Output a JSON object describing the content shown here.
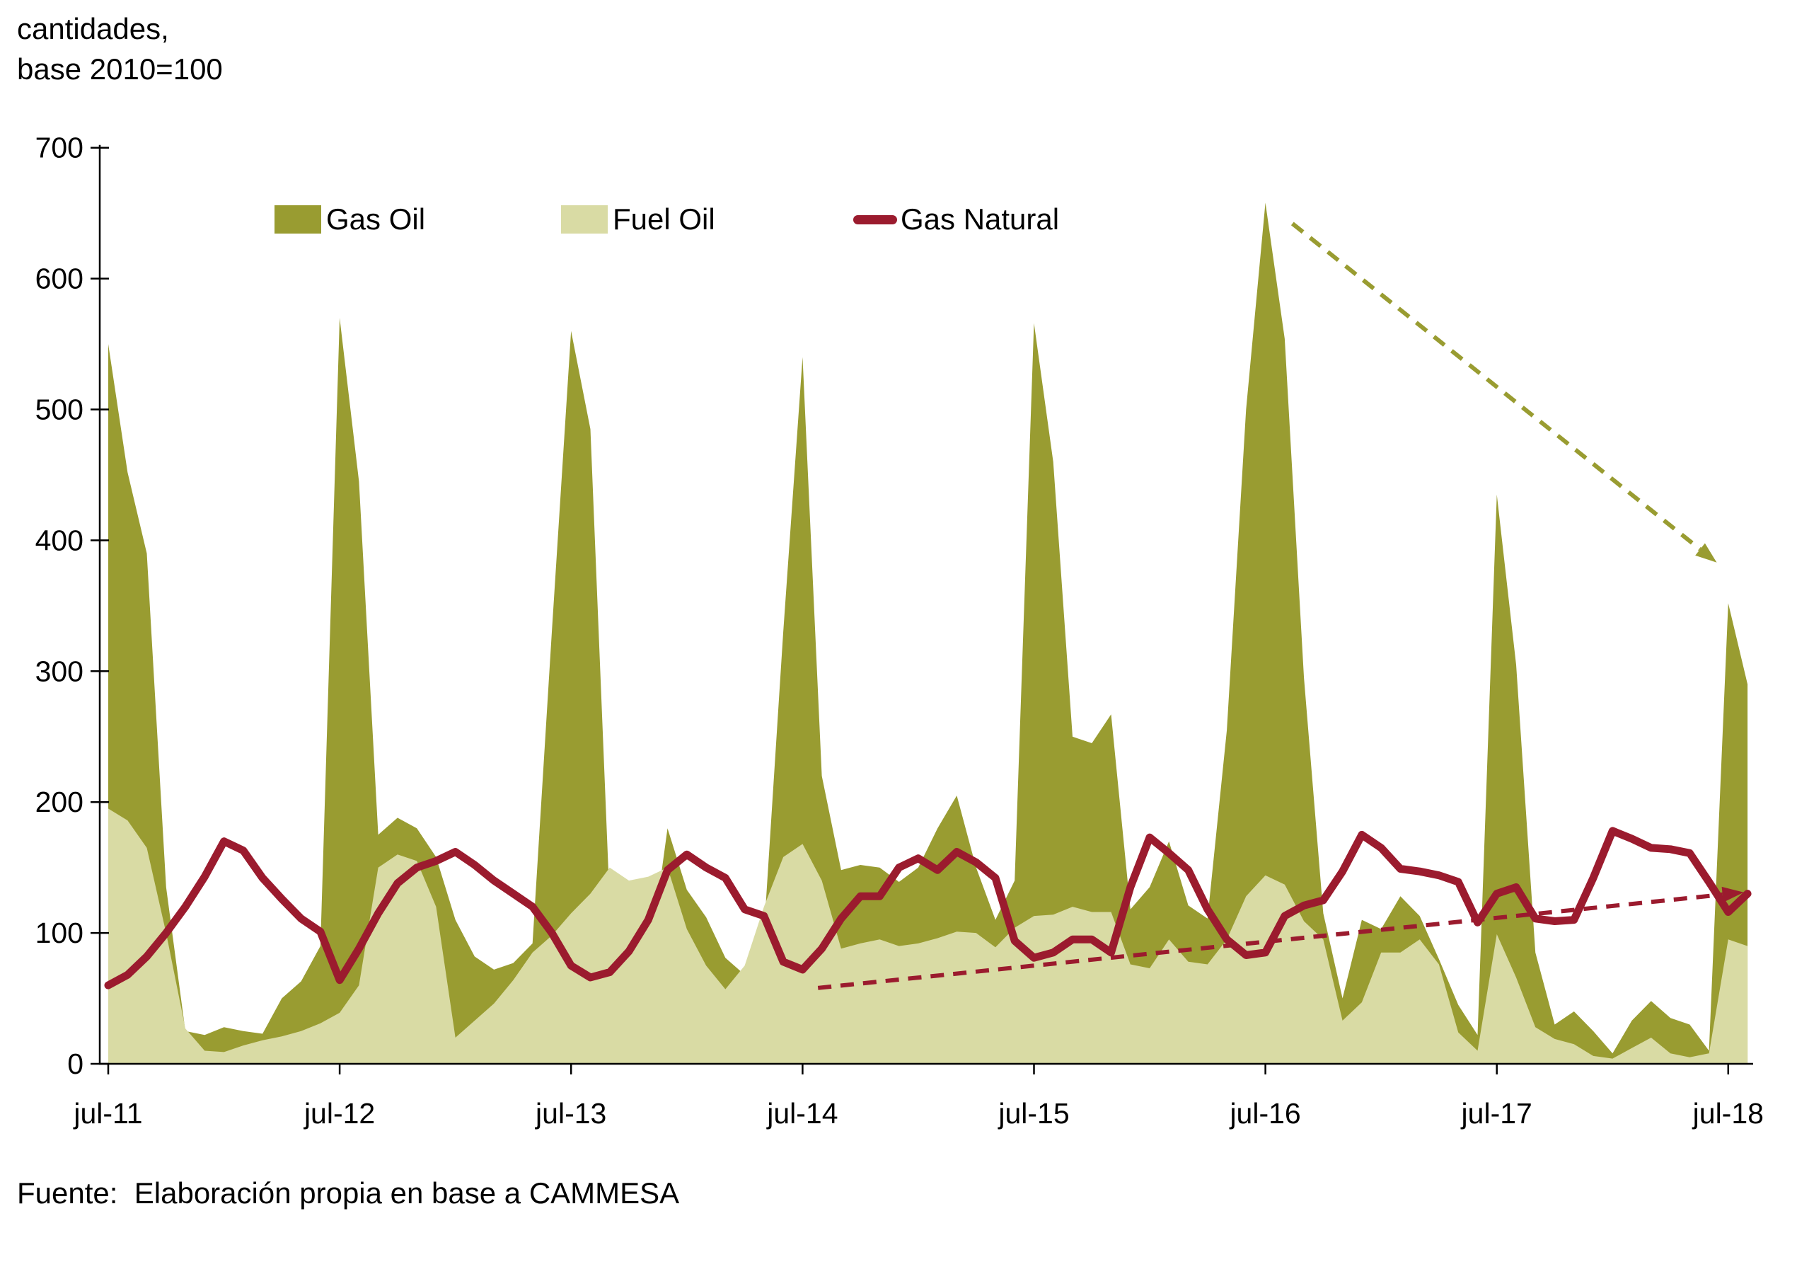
{
  "header": {
    "title_line1": "cantidades,",
    "title_line2": "base 2010=100"
  },
  "source_note": "Fuente:  Elaboración propia en base a CAMMESA",
  "colors": {
    "gas_oil": "#999c31",
    "fuel_oil": "#d9dba4",
    "gas_natural": "#9b1b2e",
    "axis": "#000000",
    "background": "#ffffff"
  },
  "legend": {
    "items": [
      {
        "label": "Gas Oil",
        "color": "#999c31",
        "marker": "square"
      },
      {
        "label": "Fuel Oil",
        "color": "#d9dba4",
        "marker": "square"
      },
      {
        "label": "Gas Natural",
        "color": "#9b1b2e",
        "marker": "line"
      }
    ]
  },
  "chart_data": {
    "type": "area",
    "title": "cantidades, base 2010=100",
    "xlabel": "",
    "ylabel": "cantidades, base 2010=100",
    "ylim": [
      0,
      700
    ],
    "y_ticks": [
      0,
      100,
      200,
      300,
      400,
      500,
      600,
      700
    ],
    "x_tick_labels": [
      "jul-11",
      "jul-12",
      "jul-13",
      "jul-14",
      "jul-15",
      "jul-16",
      "jul-17",
      "jul-18"
    ],
    "x_tick_month_index": [
      0,
      12,
      24,
      36,
      48,
      60,
      72,
      84
    ],
    "n_points": 86,
    "x_start_label": "jul-11",
    "x_end_label": "jul-18",
    "grid": false,
    "legend_position": "top-left-inside",
    "series": [
      {
        "name": "Gas Oil",
        "type": "area",
        "color": "#999c31",
        "values": [
          550,
          452,
          390,
          135,
          25,
          22,
          28,
          25,
          23,
          50,
          63,
          90,
          570,
          445,
          175,
          188,
          180,
          158,
          110,
          82,
          72,
          77,
          92,
          330,
          560,
          485,
          123,
          80,
          72,
          180,
          133,
          112,
          81,
          68,
          100,
          330,
          540,
          220,
          148,
          152,
          150,
          139,
          150,
          180,
          205,
          150,
          110,
          140,
          566,
          460,
          250,
          245,
          267,
          118,
          135,
          170,
          121,
          111,
          255,
          500,
          658,
          554,
          295,
          115,
          50,
          110,
          103,
          128,
          113,
          80,
          45,
          22,
          435,
          305,
          85,
          30,
          40,
          25,
          8,
          33,
          48,
          35,
          30,
          10,
          352,
          290
        ]
      },
      {
        "name": "Fuel Oil",
        "type": "area",
        "color": "#d9dba4",
        "values": [
          195,
          186,
          165,
          100,
          27,
          10,
          9,
          14,
          18,
          21,
          25,
          31,
          39,
          60,
          150,
          160,
          155,
          120,
          20,
          33,
          46,
          64,
          85,
          98,
          115,
          130,
          150,
          140,
          143,
          150,
          103,
          75,
          57,
          75,
          120,
          158,
          168,
          140,
          88,
          92,
          95,
          90,
          92,
          96,
          101,
          100,
          89,
          104,
          113,
          114,
          120,
          116,
          116,
          76,
          73,
          95,
          78,
          76,
          95,
          128,
          144,
          137,
          109,
          95,
          33,
          47,
          85,
          85,
          95,
          76,
          24,
          10,
          99,
          66,
          28,
          19,
          15,
          6,
          4,
          12,
          20,
          8,
          5,
          8,
          95,
          90
        ]
      },
      {
        "name": "Gas Natural",
        "type": "line",
        "color": "#9b1b2e",
        "values": [
          60,
          68,
          82,
          100,
          120,
          143,
          170,
          163,
          142,
          126,
          111,
          101,
          64,
          88,
          115,
          138,
          150,
          155,
          162,
          152,
          140,
          130,
          120,
          100,
          75,
          66,
          70,
          86,
          110,
          148,
          160,
          150,
          142,
          118,
          113,
          78,
          72,
          88,
          111,
          128,
          128,
          150,
          157,
          148,
          162,
          154,
          142,
          94,
          81,
          85,
          95,
          95,
          85,
          135,
          173,
          161,
          148,
          118,
          95,
          83,
          85,
          113,
          121,
          125,
          147,
          175,
          165,
          149,
          147,
          144,
          139,
          108,
          130,
          135,
          111,
          109,
          110,
          142,
          178,
          172,
          165,
          164,
          161,
          139,
          116,
          130
        ]
      }
    ],
    "annotations": [
      {
        "name": "gas-oil-trend-arrow",
        "color": "#999c31",
        "style": "dashed-arrow",
        "from_month": 61.4,
        "from_value": 642,
        "to_month": 83.4,
        "to_value": 383
      },
      {
        "name": "gas-natural-trend-arrow",
        "color": "#9b1b2e",
        "style": "dashed-arrow",
        "from_month": 36.8,
        "from_value": 58,
        "to_month": 84.8,
        "to_value": 131
      }
    ]
  }
}
